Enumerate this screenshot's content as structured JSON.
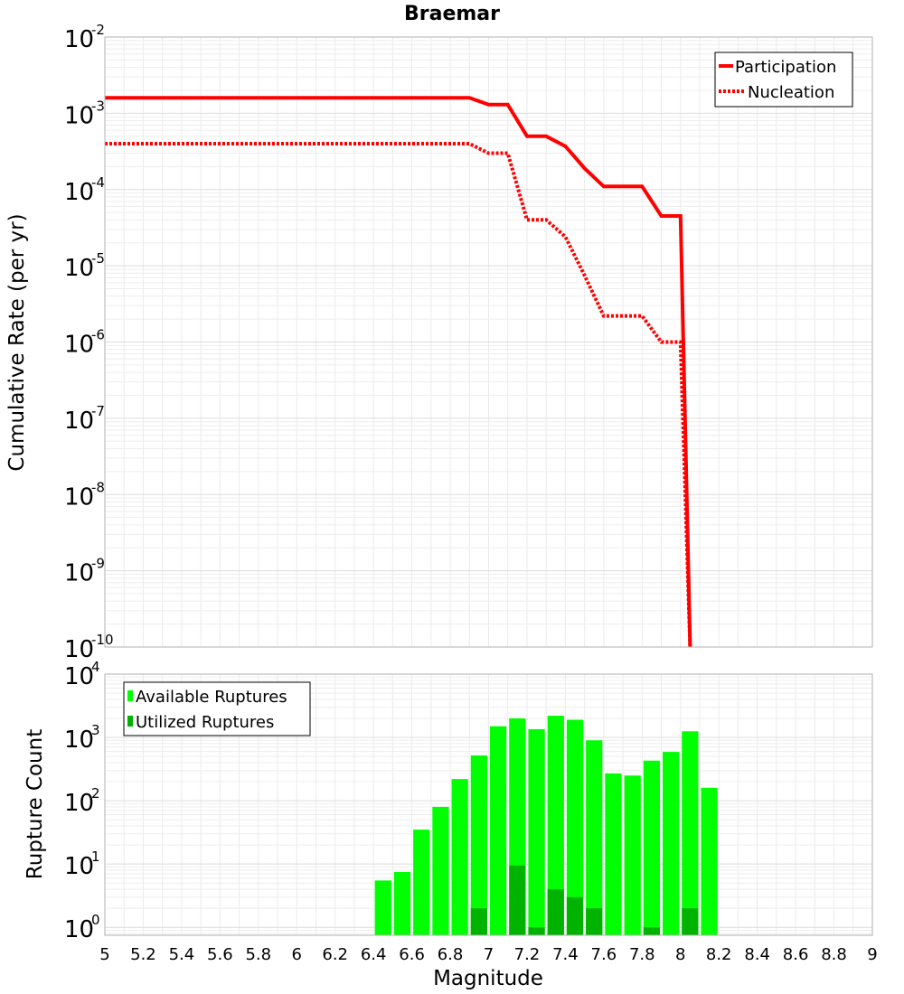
{
  "chart_data": [
    {
      "type": "line",
      "title": "Braemar",
      "xlabel": "",
      "ylabel": "Cumulative Rate (per yr)",
      "xlim": [
        5,
        9
      ],
      "ylim": [
        1e-10,
        0.01
      ],
      "yscale": "log",
      "grid": true,
      "legend_position": "top-right",
      "y_ticks": [
        {
          "base": "10",
          "exp": "-2",
          "value": 0.01
        },
        {
          "base": "10",
          "exp": "-3",
          "value": 0.001
        },
        {
          "base": "10",
          "exp": "-4",
          "value": 0.0001
        },
        {
          "base": "10",
          "exp": "-5",
          "value": 1e-05
        },
        {
          "base": "10",
          "exp": "-6",
          "value": 1e-06
        },
        {
          "base": "10",
          "exp": "-7",
          "value": 1e-07
        },
        {
          "base": "10",
          "exp": "-8",
          "value": 1e-08
        },
        {
          "base": "10",
          "exp": "-9",
          "value": 1e-09
        },
        {
          "base": "10",
          "exp": "-10",
          "value": 1e-10
        }
      ],
      "series": [
        {
          "name": "Participation",
          "color": "#ff0000",
          "style": "solid",
          "x": [
            5,
            6.9,
            7.0,
            7.1,
            7.2,
            7.3,
            7.4,
            7.5,
            7.6,
            7.7,
            7.8,
            7.9,
            8.0,
            8.05
          ],
          "y": [
            0.0016,
            0.0016,
            0.0013,
            0.0013,
            0.0005,
            0.0005,
            0.00037,
            0.00019,
            0.00011,
            0.00011,
            0.00011,
            4.5e-05,
            4.5e-05,
            1e-10
          ]
        },
        {
          "name": "Nucleation",
          "color": "#ff0000",
          "style": "dotted",
          "x": [
            5,
            6.9,
            7.0,
            7.1,
            7.2,
            7.3,
            7.4,
            7.5,
            7.6,
            7.7,
            7.8,
            7.9,
            8.0,
            8.05
          ],
          "y": [
            0.0004,
            0.0004,
            0.0003,
            0.0003,
            4e-05,
            4e-05,
            2.4e-05,
            7.5e-06,
            2.2e-06,
            2.2e-06,
            2.2e-06,
            1e-06,
            1e-06,
            1e-10
          ]
        }
      ]
    },
    {
      "type": "bar",
      "title": "",
      "xlabel": "Magnitude",
      "ylabel": "Rupture Count",
      "xlim": [
        5,
        9
      ],
      "ylim": [
        0.75,
        10000
      ],
      "yscale": "log",
      "grid": true,
      "legend_position": "top-left",
      "y_ticks": [
        {
          "base": "10",
          "exp": "4",
          "value": 10000
        },
        {
          "base": "10",
          "exp": "3",
          "value": 1000
        },
        {
          "base": "10",
          "exp": "2",
          "value": 100
        },
        {
          "base": "10",
          "exp": "1",
          "value": 10
        },
        {
          "base": "10",
          "exp": "0",
          "value": 1
        }
      ],
      "x_ticks": [
        "5",
        "5.2",
        "5.4",
        "5.6",
        "5.8",
        "6",
        "6.2",
        "6.4",
        "6.6",
        "6.8",
        "7",
        "7.2",
        "7.4",
        "7.6",
        "7.8",
        "8",
        "8.2",
        "8.4",
        "8.6",
        "8.8",
        "9"
      ],
      "bar_width": 0.1,
      "categories": [
        6.45,
        6.55,
        6.65,
        6.75,
        6.85,
        6.95,
        7.05,
        7.15,
        7.25,
        7.35,
        7.45,
        7.55,
        7.65,
        7.75,
        7.85,
        7.95,
        8.05,
        8.15
      ],
      "series": [
        {
          "name": "Available Ruptures",
          "color": "#00ff00",
          "values": [
            5.5,
            7.5,
            35,
            80,
            220,
            520,
            1500,
            2000,
            1350,
            2200,
            1900,
            900,
            270,
            250,
            430,
            590,
            1250,
            160
          ]
        },
        {
          "name": "Utilized Ruptures",
          "color": "#00b300",
          "values": [
            0,
            0,
            0,
            0,
            0,
            2,
            0,
            9.5,
            1,
            4,
            3,
            2,
            0,
            0,
            1,
            0,
            2,
            0
          ]
        }
      ]
    }
  ]
}
